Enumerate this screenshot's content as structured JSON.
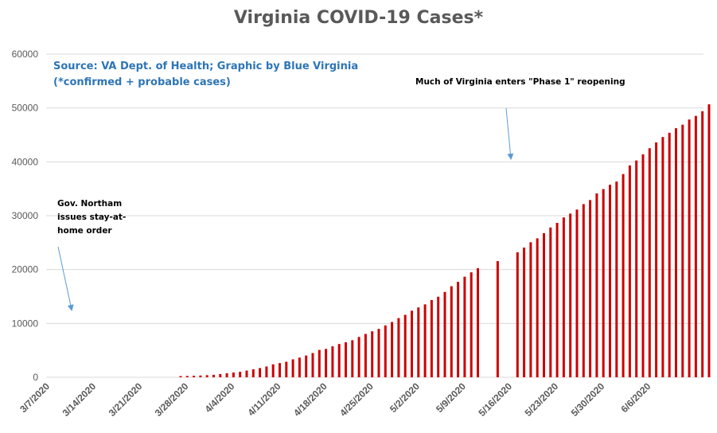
{
  "chart_data": {
    "type": "bar",
    "title": "Virginia COVID-19 Cases*",
    "xlabel": "",
    "ylabel": "",
    "ylim": [
      0,
      60000
    ],
    "yticks": [
      0,
      10000,
      20000,
      30000,
      40000,
      50000,
      60000
    ],
    "ytick_labels": [
      "0",
      "10000",
      "20000",
      "30000",
      "40000",
      "50000",
      "60000"
    ],
    "xtick_labels": [
      "3/7/2020",
      "3/14/2020",
      "3/21/2020",
      "3/28/2020",
      "4/4/2020",
      "4/11/2020",
      "4/18/2020",
      "4/25/2020",
      "5/2/2020",
      "5/9/2020",
      "5/16/2020",
      "5/23/2020",
      "5/30/2020",
      "6/6/2020"
    ],
    "grid": true,
    "bar_color": "#cc0000",
    "start_date": "3/7/2020",
    "values": [
      0,
      0,
      0,
      0,
      0,
      0,
      0,
      0,
      0,
      0,
      0,
      0,
      0,
      0,
      0,
      0,
      0,
      0,
      0,
      0,
      220,
      250,
      290,
      330,
      390,
      460,
      600,
      740,
      890,
      1020,
      1250,
      1480,
      1710,
      2010,
      2410,
      2640,
      2880,
      3330,
      3650,
      4040,
      4500,
      5080,
      5270,
      5750,
      6180,
      6500,
      6890,
      7490,
      8050,
      8540,
      8990,
      9630,
      10270,
      10990,
      11600,
      12360,
      12970,
      13540,
      14340,
      14960,
      15850,
      16900,
      17730,
      18670,
      19490,
      20260,
      null,
      null,
      21570,
      null,
      null,
      23200,
      24080,
      25070,
      25800,
      26750,
      27810,
      28670,
      29680,
      30390,
      31140,
      32150,
      32910,
      34140,
      34950,
      35750,
      36340,
      37730,
      39340,
      40250,
      41400,
      42530,
      43610,
      44610,
      45400,
      46240,
      46900,
      47860,
      48530,
      49400,
      50680
    ],
    "annotations": [
      {
        "text_lines": [
          "Gov. Northam",
          "issues stay-at-",
          "home order"
        ]
      },
      {
        "text_lines": [
          "Much of Virginia enters \"Phase 1\" reopening"
        ]
      }
    ],
    "source_lines": [
      "Source: VA Dept. of Health; Graphic by Blue Virginia",
      "(*confirmed + probable cases)"
    ]
  },
  "colors": {
    "bar": "#cc0000",
    "grid": "#d9d9d9",
    "arrow": "#5b9bd5",
    "source": "#2e75b6",
    "title": "#595959"
  }
}
